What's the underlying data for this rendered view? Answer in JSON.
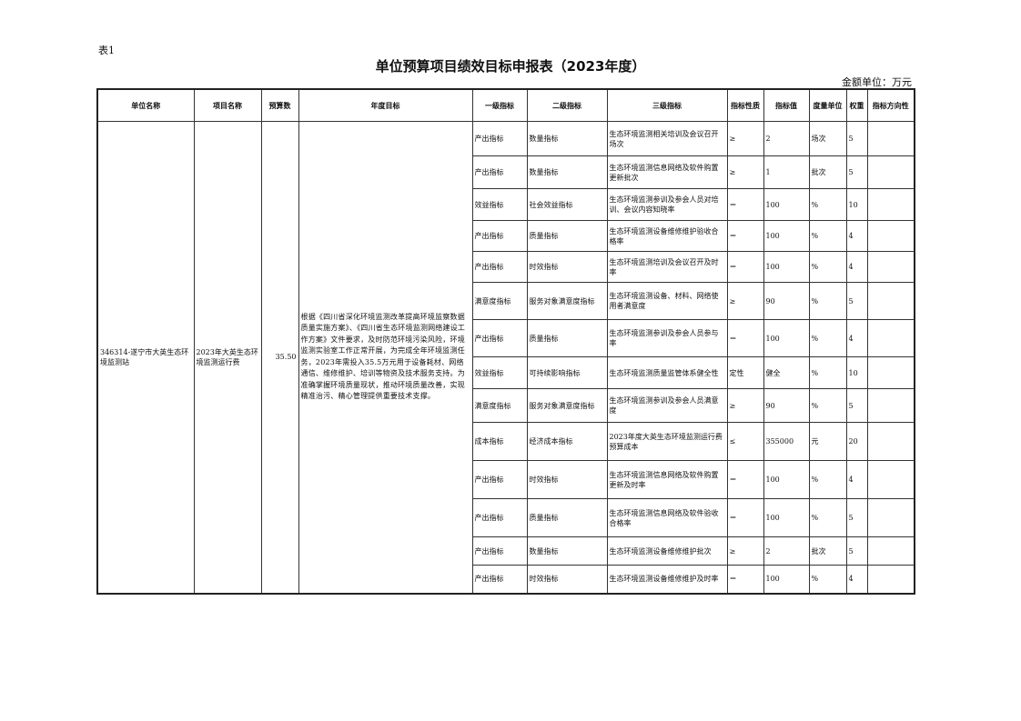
{
  "doc": {
    "table_no": "表1",
    "title": "单位预算项目绩效目标申报表（2023年度）",
    "unit": "金额单位：万元"
  },
  "headers": [
    "单位名称",
    "项目名称",
    "预算数",
    "年度目标",
    "一级指标",
    "二级指标",
    "三级指标",
    "指标性质",
    "指标值",
    "度量单位",
    "权重",
    "指标方向性"
  ],
  "project": {
    "unit_name": "346314-遂宁市大英生态环境监测站",
    "project_name": "2023年大英生态环境监测运行费",
    "budget": "35.50",
    "goal": "根据《四川省深化环境监测改革提高环境监察数据质量实施方案》、《四川省生态环境监测网络建设工作方案》文件要求，及时防范环境污染风险，环境监测实验室工作正常开展，为完成全年环境监测任务，2023年需投入35.5万元用于设备耗材、网络通信、维修维护、培训等物资及技术服务支持。为准确掌握环境质量现状，推动环境质量改善，实现精准治污、精心管理提供重要技术支撑。"
  },
  "rows": [
    {
      "l1": "产出指标",
      "l2": "数量指标",
      "l3": "生态环境监测相关培训及会议召开场次",
      "nature": "≥",
      "value": "2",
      "unit": "场次",
      "weight": "5",
      "dir": ""
    },
    {
      "l1": "产出指标",
      "l2": "数量指标",
      "l3": "生态环境监测信息网络及软件购置更新批次",
      "nature": "≥",
      "value": "1",
      "unit": "批次",
      "weight": "5",
      "dir": ""
    },
    {
      "l1": "效益指标",
      "l2": "社会效益指标",
      "l3": "生态环境监测参训及参会人员对培训、会议内容知晓率",
      "nature": "＝",
      "value": "100",
      "unit": "%",
      "weight": "10",
      "dir": ""
    },
    {
      "l1": "产出指标",
      "l2": "质量指标",
      "l3": "生态环境监测设备维修维护验收合格率",
      "nature": "＝",
      "value": "100",
      "unit": "%",
      "weight": "4",
      "dir": ""
    },
    {
      "l1": "产出指标",
      "l2": "时效指标",
      "l3": "生态环境监测培训及会议召开及时率",
      "nature": "＝",
      "value": "100",
      "unit": "%",
      "weight": "4",
      "dir": ""
    },
    {
      "l1": "满意度指标",
      "l2": "服务对象满意度指标",
      "l3": "生态环境监测设备、材料、网络使用者满意度",
      "nature": "≥",
      "value": "90",
      "unit": "%",
      "weight": "5",
      "dir": ""
    },
    {
      "l1": "产出指标",
      "l2": "质量指标",
      "l3": "生态环境监测参训及参会人员参与率",
      "nature": "＝",
      "value": "100",
      "unit": "%",
      "weight": "4",
      "dir": ""
    },
    {
      "l1": "效益指标",
      "l2": "可持续影响指标",
      "l3": "生态环境监测质量监管体系健全性",
      "nature": "定性",
      "value": "健全",
      "unit": "%",
      "weight": "10",
      "dir": ""
    },
    {
      "l1": "满意度指标",
      "l2": "服务对象满意度指标",
      "l3": "生态环境监测参训及参会人员满意度",
      "nature": "≥",
      "value": "90",
      "unit": "%",
      "weight": "5",
      "dir": ""
    },
    {
      "l1": "成本指标",
      "l2": "经济成本指标",
      "l3": "2023年度大英生态环境监测运行费预算成本",
      "nature": "≤",
      "value": "355000",
      "unit": "元",
      "weight": "20",
      "dir": ""
    },
    {
      "l1": "产出指标",
      "l2": "时效指标",
      "l3": "生态环境监测信息网络及软件购置更新及时率",
      "nature": "＝",
      "value": "100",
      "unit": "%",
      "weight": "4",
      "dir": ""
    },
    {
      "l1": "产出指标",
      "l2": "质量指标",
      "l3": "生态环境监测信息网络及软件验收合格率",
      "nature": "＝",
      "value": "100",
      "unit": "%",
      "weight": "5",
      "dir": ""
    },
    {
      "l1": "产出指标",
      "l2": "数量指标",
      "l3": "生态环境监测设备维修维护批次",
      "nature": "≥",
      "value": "2",
      "unit": "批次",
      "weight": "5",
      "dir": ""
    },
    {
      "l1": "产出指标",
      "l2": "时效指标",
      "l3": "生态环境监测设备维修维护及时率",
      "nature": "＝",
      "value": "100",
      "unit": "%",
      "weight": "4",
      "dir": ""
    }
  ]
}
